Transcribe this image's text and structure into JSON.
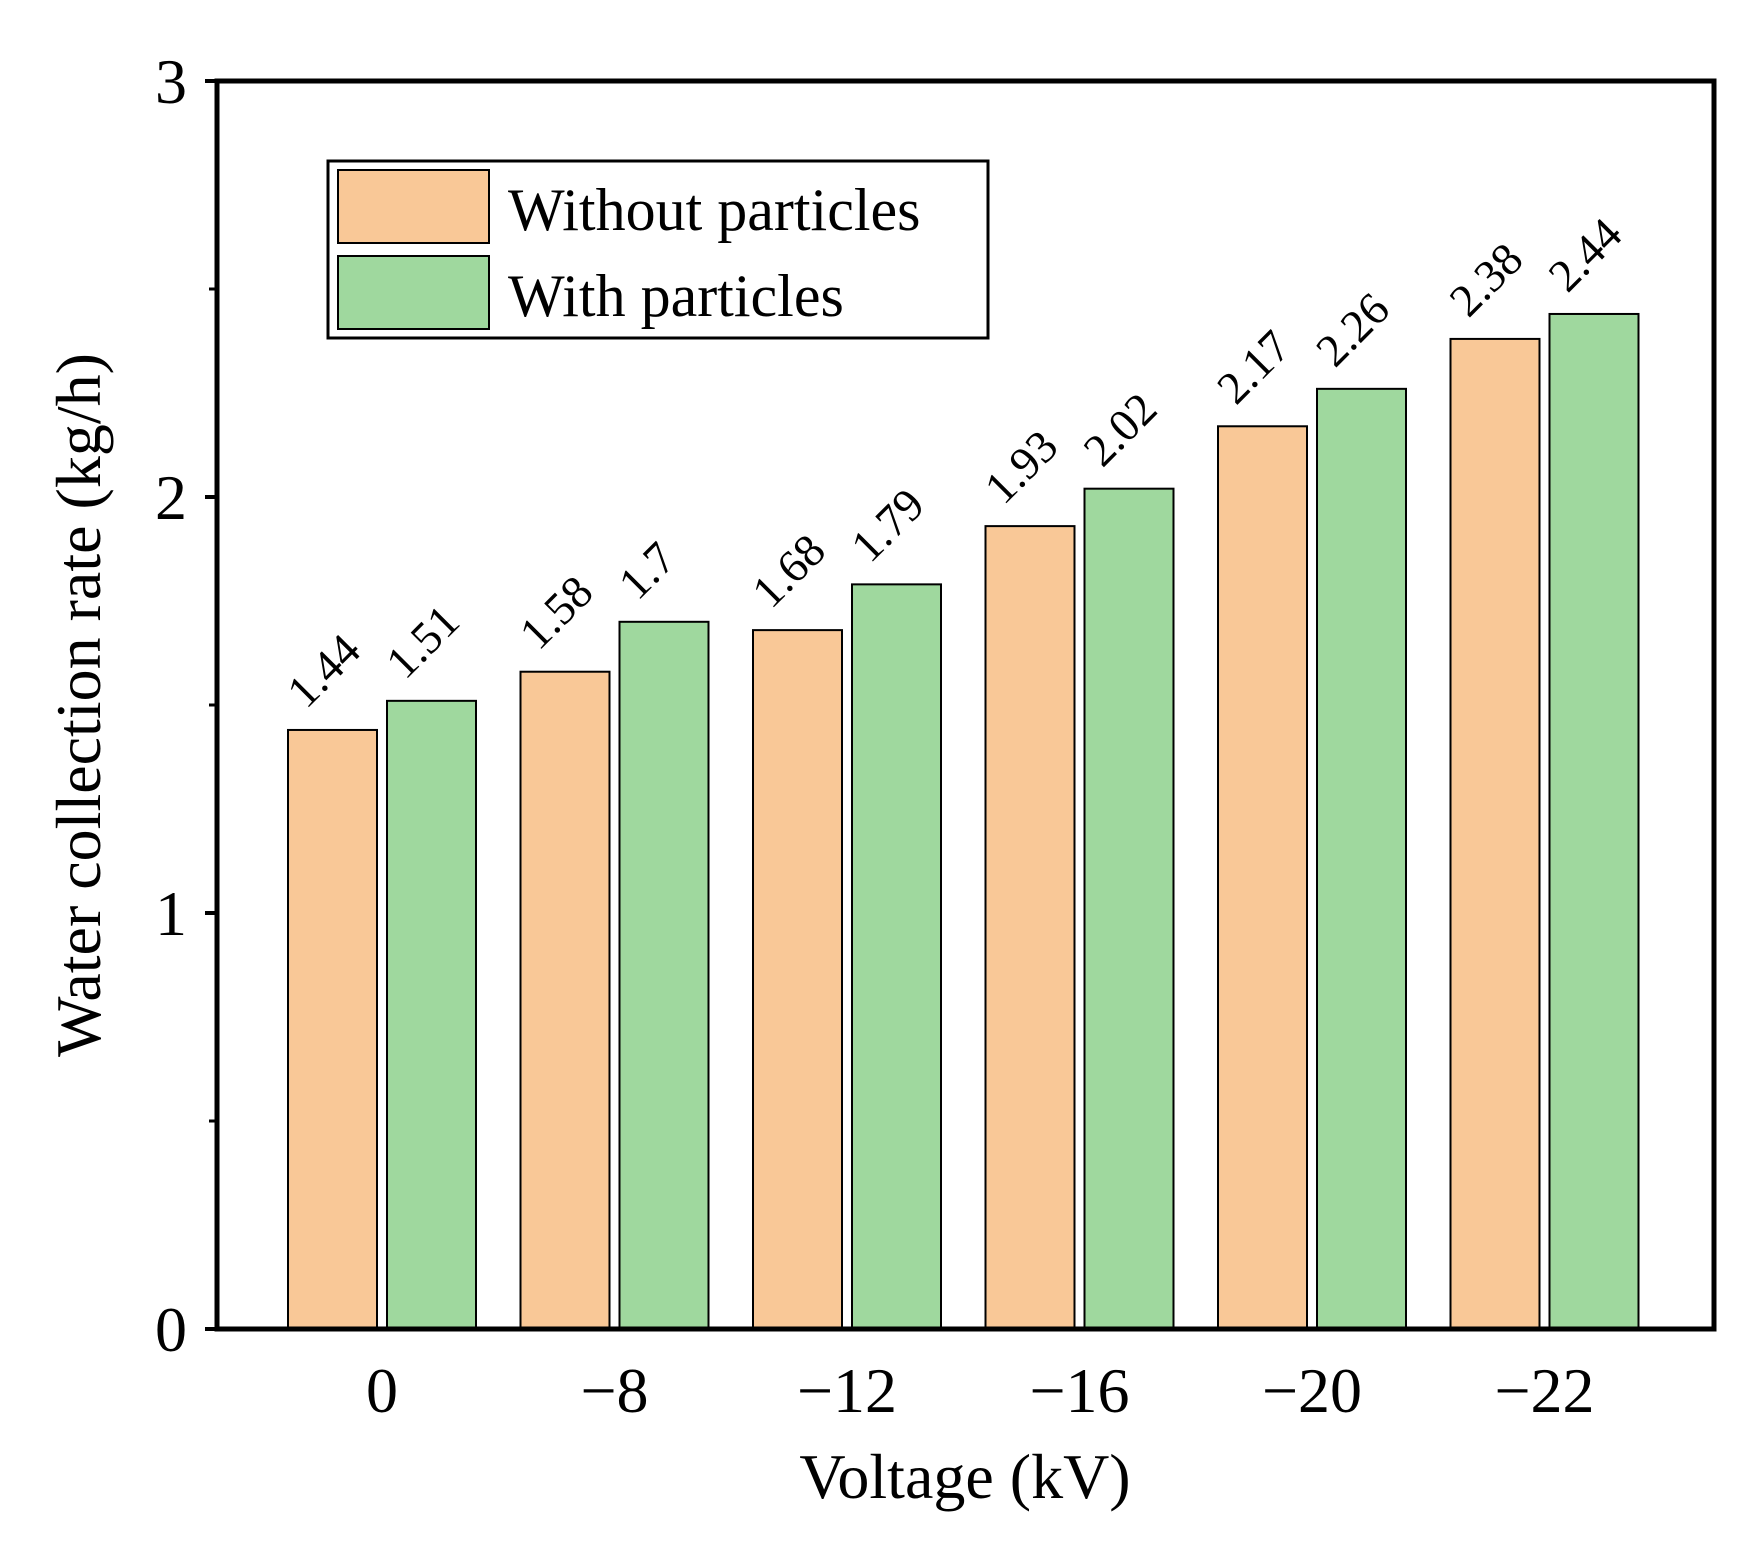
{
  "chart_data": {
    "type": "bar",
    "categories": [
      "0",
      "−8",
      "−12",
      "−16",
      "−20",
      "−22"
    ],
    "series": [
      {
        "name": "Without particles",
        "color": "#F9C897",
        "values": [
          1.44,
          1.58,
          1.68,
          1.93,
          2.17,
          2.38
        ],
        "labels": [
          "1.44",
          "1.58",
          "1.68",
          "1.93",
          "2.17",
          "2.38"
        ]
      },
      {
        "name": "With particles",
        "color": "#9FD89E",
        "values": [
          1.51,
          1.7,
          1.79,
          2.02,
          2.26,
          2.44
        ],
        "labels": [
          "1.51",
          "1.7",
          "1.79",
          "2.02",
          "2.26",
          "2.44"
        ]
      }
    ],
    "xlabel": "Voltage (kV)",
    "ylabel": "Water collection rate (kg/h)",
    "ylim": [
      0,
      3
    ],
    "yticks": [
      0,
      1,
      2,
      3
    ],
    "ytick_labels": [
      "0",
      "1",
      "2",
      "3"
    ],
    "y_minor_ticks": [
      0.5,
      1.5,
      2.5
    ],
    "grid": false,
    "legend_position": "top-left"
  }
}
